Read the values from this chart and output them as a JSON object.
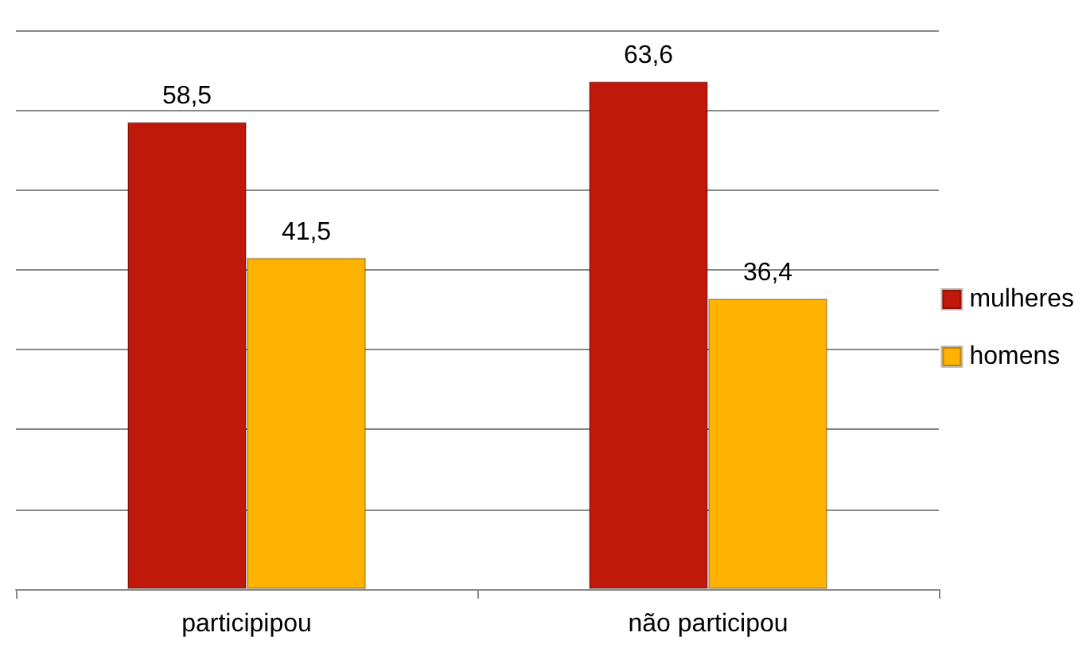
{
  "chart_data": {
    "type": "bar",
    "categories": [
      "participipou",
      "não participou"
    ],
    "series": [
      {
        "name": "mulheres",
        "color": "#c0180a",
        "values": [
          58.5,
          63.6
        ],
        "value_labels": [
          "58,5",
          "63,6"
        ]
      },
      {
        "name": "homens",
        "color": "#ffb300",
        "values": [
          41.5,
          36.4
        ],
        "value_labels": [
          "41,5",
          "36,4"
        ]
      }
    ],
    "ylim": [
      0,
      70
    ],
    "yticks": [
      {
        "value": 0,
        "label": null
      },
      {
        "value": 10,
        "label": null
      },
      {
        "value": 20,
        "label": null
      },
      {
        "value": 30,
        "label": null
      },
      {
        "value": 40,
        "label": null
      },
      {
        "value": 50,
        "label": null
      },
      {
        "value": 60,
        "label": null
      },
      {
        "value": 70,
        "label": null
      }
    ],
    "tick_labels": "x",
    "grid": "y",
    "legend": "right"
  }
}
